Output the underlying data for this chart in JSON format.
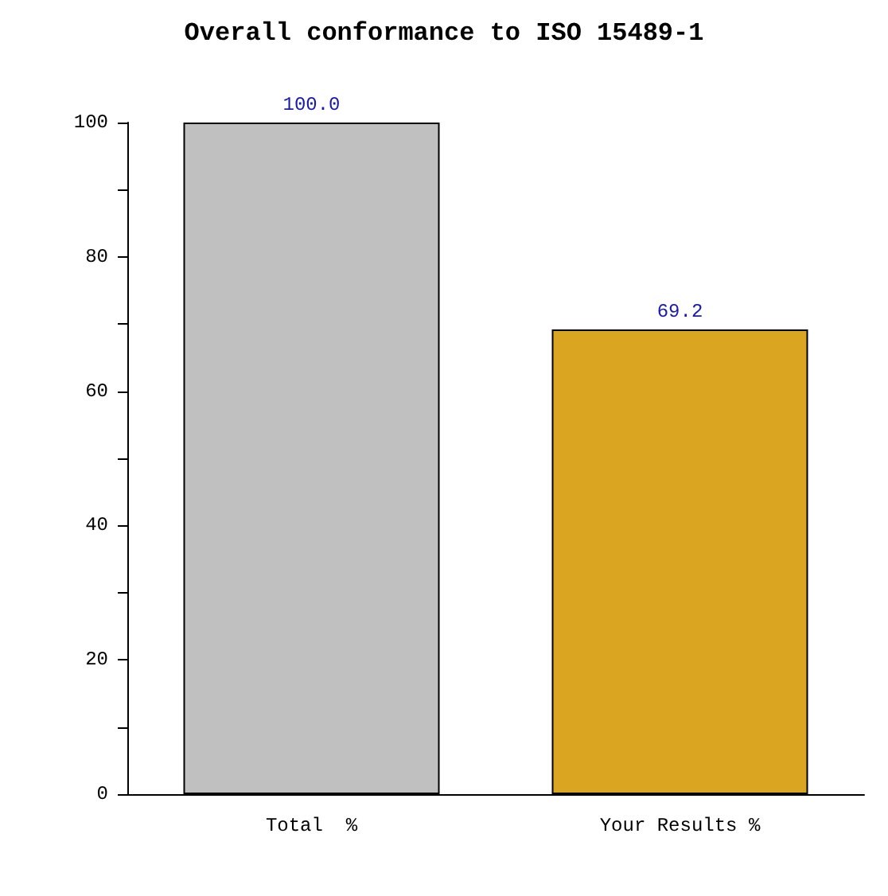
{
  "chart_data": {
    "type": "bar",
    "title": "Overall conformance to ISO 15489-1",
    "categories": [
      "Total  %",
      "Your Results %"
    ],
    "values": [
      100.0,
      69.2
    ],
    "colors": [
      "#c0c0c0",
      "#daa520"
    ],
    "value_labels": [
      "100.0",
      "69.2"
    ],
    "ylim": [
      0,
      100
    ],
    "yticks": [
      0,
      {
        "value": 10,
        "label": null
      },
      20,
      {
        "value": 30,
        "label": null
      },
      40,
      {
        "value": 50,
        "label": null
      },
      60,
      {
        "value": 70,
        "label": null
      },
      80,
      {
        "value": 90,
        "label": null
      },
      100
    ],
    "grid": false
  }
}
